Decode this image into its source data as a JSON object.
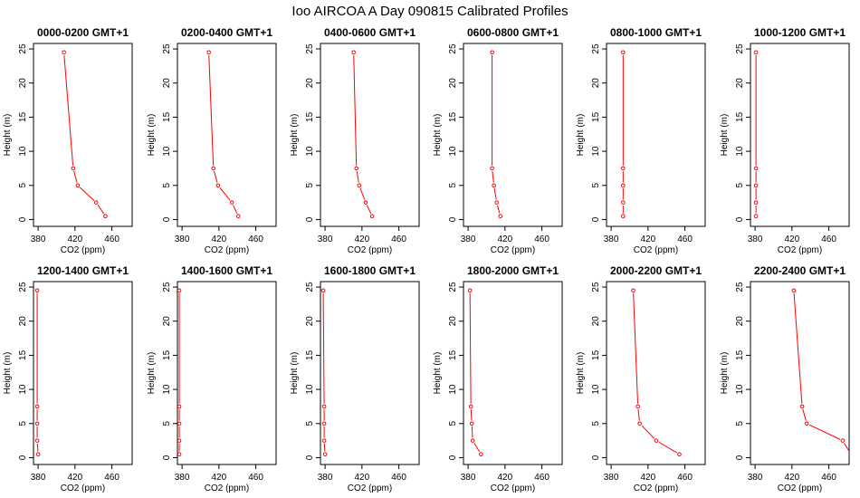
{
  "figure_title": "Ioo AIRCOA A  Day 090815  Calibrated Profiles",
  "colors": {
    "series": "#ff0000",
    "axes": "#000000"
  },
  "chart_data": {
    "type": "line",
    "xlabel": "CO2 (ppm)",
    "ylabel": "Height (m)",
    "xlim": [
      375,
      482
    ],
    "ylim": [
      -1,
      25.8
    ],
    "xticks": [
      380,
      420,
      460
    ],
    "yticks": [
      0,
      5,
      10,
      15,
      20,
      25
    ],
    "heights": [
      24.5,
      7.5,
      5.0,
      2.5,
      0.5
    ],
    "panels": [
      {
        "title": "0000-0200 GMT+1",
        "values": [
          408,
          418,
          423,
          443,
          453
        ]
      },
      {
        "title": "0200-0400 GMT+1",
        "values": [
          409,
          414,
          419,
          434,
          441
        ]
      },
      {
        "title": "0400-0600 GMT+1",
        "values": [
          411,
          414,
          417,
          424,
          431
        ]
      },
      {
        "title": "0600-0800 GMT+1",
        "values": [
          406,
          406,
          408,
          411,
          415
        ]
      },
      {
        "title": "0800-1000 GMT+1",
        "values": [
          393,
          393,
          393,
          393,
          393
        ]
      },
      {
        "title": "1000-1200 GMT+1",
        "values": [
          381,
          381,
          381,
          381,
          381
        ]
      },
      {
        "title": "1200-1400 GMT+1",
        "values": [
          379,
          379,
          379,
          379,
          380
        ]
      },
      {
        "title": "1400-1600 GMT+1",
        "values": [
          377,
          377,
          377,
          377,
          377
        ]
      },
      {
        "title": "1600-1800 GMT+1",
        "values": [
          378,
          379,
          379,
          379,
          380
        ]
      },
      {
        "title": "1800-2000 GMT+1",
        "values": [
          382,
          383,
          384,
          385,
          394
        ]
      },
      {
        "title": "2000-2200 GMT+1",
        "values": [
          404,
          409,
          411,
          429,
          454
        ]
      },
      {
        "title": "2200-2400 GMT+1",
        "values": [
          422,
          431,
          436,
          475,
          484
        ]
      }
    ]
  }
}
